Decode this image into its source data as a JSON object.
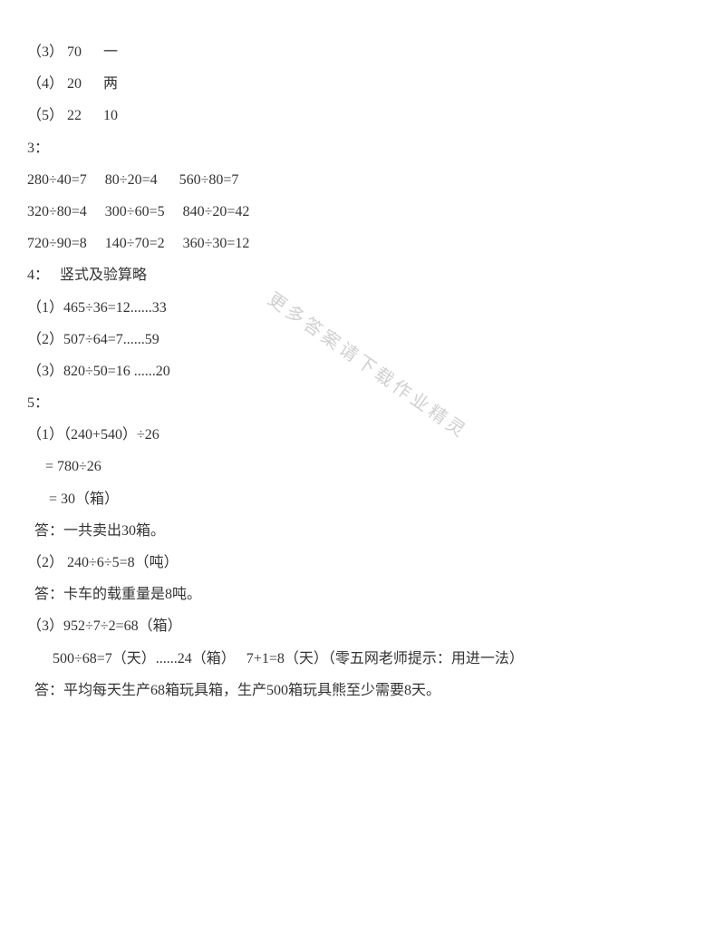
{
  "watermark": "更多答案请下载作业精灵",
  "lines": [
    "（3） 70      一",
    "（4） 20      两",
    "（5） 22      10",
    "",
    "3：",
    "280÷40=7     80÷20=4      560÷80=7",
    "320÷80=4     300÷60=5     840÷20=42",
    "720÷90=8     140÷70=2     360÷30=12",
    "",
    "4：   竖式及验算略",
    "（1）465÷36=12......33",
    "（2）507÷64=7......59",
    "（3）820÷50=16 ......20",
    "",
    "5：",
    "（1）（240+540）÷26",
    "     = 780÷26",
    "      = 30（箱）",
    "  答：一共卖出30箱。",
    "",
    "（2） 240÷6÷5=8（吨）",
    "  答：卡车的载重量是8吨。",
    "",
    "（3）952÷7÷2=68（箱）",
    "       500÷68=7（天）......24（箱）   7+1=8（天）（零五网老师提示：用进一法）",
    "  答：平均每天生产68箱玩具箱，生产500箱玩具熊至少需要8天。"
  ]
}
